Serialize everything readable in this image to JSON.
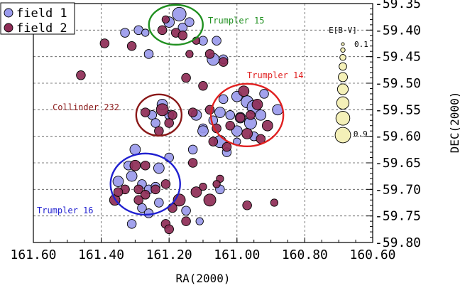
{
  "chart_data": {
    "type": "scatter",
    "xlabel": "RA(2000)",
    "ylabel": "DEC(2000)",
    "xlim": [
      161.6,
      160.6
    ],
    "ylim": [
      -59.8,
      -59.35
    ],
    "x_ticks": [
      "161.60",
      "161.40",
      "161.20",
      "161.00",
      "160.80",
      "160.60"
    ],
    "y_ticks": [
      "-59.35",
      "-59.40",
      "-59.45",
      "-59.50",
      "-59.55",
      "-59.60",
      "-59.65",
      "-59.70",
      "-59.75",
      "-59.80"
    ],
    "grid": true,
    "legend_position": "top-left",
    "size_scale": {
      "title": "E[B-V]",
      "min_label": "0.1",
      "max_label": "0.9",
      "values": [
        0.1,
        0.2,
        0.3,
        0.4,
        0.5,
        0.6,
        0.7,
        0.8,
        0.9
      ],
      "color": "#f4f0b8"
    },
    "series": [
      {
        "name": "field 1",
        "color": "#9a9aec",
        "points": [
          [
            161.17,
            -59.37,
            0.6
          ],
          [
            161.2,
            -59.385,
            0.4
          ],
          [
            161.16,
            -59.395,
            0.3
          ],
          [
            161.14,
            -59.385,
            0.3
          ],
          [
            161.33,
            -59.405,
            0.3
          ],
          [
            161.29,
            -59.4,
            0.3
          ],
          [
            161.27,
            -59.405,
            0.2
          ],
          [
            161.26,
            -59.445,
            0.3
          ],
          [
            161.07,
            -59.455,
            0.5
          ],
          [
            161.1,
            -59.42,
            0.3
          ],
          [
            161.06,
            -59.42,
            0.3
          ],
          [
            161.04,
            -59.455,
            0.3
          ],
          [
            161.04,
            -59.53,
            0.3
          ],
          [
            161.0,
            -59.525,
            0.4
          ],
          [
            160.97,
            -59.535,
            0.5
          ],
          [
            160.95,
            -59.545,
            0.6
          ],
          [
            160.93,
            -59.56,
            0.4
          ],
          [
            160.96,
            -59.575,
            0.5
          ],
          [
            160.99,
            -59.565,
            0.4
          ],
          [
            161.02,
            -59.56,
            0.3
          ],
          [
            161.05,
            -59.555,
            0.4
          ],
          [
            161.07,
            -59.57,
            0.3
          ],
          [
            161.0,
            -59.59,
            0.4
          ],
          [
            160.95,
            -59.6,
            0.3
          ],
          [
            160.88,
            -59.55,
            0.4
          ],
          [
            160.92,
            -59.52,
            0.3
          ],
          [
            161.22,
            -59.54,
            0.4
          ],
          [
            161.25,
            -59.56,
            0.3
          ],
          [
            161.24,
            -59.575,
            0.3
          ],
          [
            161.2,
            -59.56,
            0.3
          ],
          [
            161.12,
            -59.56,
            0.4
          ],
          [
            161.1,
            -59.585,
            0.3
          ],
          [
            161.05,
            -59.61,
            0.5
          ],
          [
            161.1,
            -59.59,
            0.4
          ],
          [
            161.13,
            -59.625,
            0.3
          ],
          [
            161.3,
            -59.625,
            0.4
          ],
          [
            161.32,
            -59.655,
            0.3
          ],
          [
            161.35,
            -59.685,
            0.4
          ],
          [
            161.31,
            -59.675,
            0.4
          ],
          [
            161.28,
            -59.69,
            0.3
          ],
          [
            161.26,
            -59.7,
            0.3
          ],
          [
            161.23,
            -59.66,
            0.4
          ],
          [
            161.24,
            -59.695,
            0.3
          ],
          [
            161.28,
            -59.735,
            0.3
          ],
          [
            161.31,
            -59.765,
            0.3
          ],
          [
            161.26,
            -59.745,
            0.3
          ],
          [
            161.23,
            -59.725,
            0.3
          ],
          [
            161.15,
            -59.74,
            0.3
          ],
          [
            161.11,
            -59.76,
            0.2
          ],
          [
            161.2,
            -59.64,
            0.3
          ],
          [
            161.05,
            -59.7,
            0.3
          ],
          [
            161.03,
            -59.63,
            0.3
          ],
          [
            161.0,
            -59.61,
            0.2
          ]
        ]
      },
      {
        "name": "field 2",
        "color": "#8e2c56",
        "points": [
          [
            161.21,
            -59.38,
            0.2
          ],
          [
            161.22,
            -59.4,
            0.3
          ],
          [
            161.18,
            -59.405,
            0.3
          ],
          [
            161.16,
            -59.41,
            0.3
          ],
          [
            161.12,
            -59.42,
            0.2
          ],
          [
            161.39,
            -59.425,
            0.3
          ],
          [
            161.31,
            -59.43,
            0.3
          ],
          [
            161.14,
            -59.445,
            0.2
          ],
          [
            161.08,
            -59.445,
            0.3
          ],
          [
            161.04,
            -59.46,
            0.3
          ],
          [
            161.46,
            -59.485,
            0.3
          ],
          [
            161.15,
            -59.49,
            0.3
          ],
          [
            161.1,
            -59.505,
            0.3
          ],
          [
            161.22,
            -59.55,
            0.5
          ],
          [
            161.19,
            -59.56,
            0.3
          ],
          [
            161.2,
            -59.575,
            0.3
          ],
          [
            161.23,
            -59.59,
            0.3
          ],
          [
            161.27,
            -59.555,
            0.3
          ],
          [
            161.13,
            -59.555,
            0.3
          ],
          [
            161.08,
            -59.55,
            0.3
          ],
          [
            160.98,
            -59.515,
            0.4
          ],
          [
            160.94,
            -59.54,
            0.4
          ],
          [
            160.96,
            -59.56,
            0.3
          ],
          [
            160.97,
            -59.595,
            0.4
          ],
          [
            160.91,
            -59.58,
            0.4
          ],
          [
            160.93,
            -59.605,
            0.3
          ],
          [
            160.99,
            -59.565,
            0.3
          ],
          [
            161.02,
            -59.58,
            0.3
          ],
          [
            161.03,
            -59.62,
            0.3
          ],
          [
            161.07,
            -59.61,
            0.3
          ],
          [
            161.06,
            -59.585,
            0.3
          ],
          [
            161.3,
            -59.655,
            0.4
          ],
          [
            161.27,
            -59.655,
            0.3
          ],
          [
            161.29,
            -59.7,
            0.3
          ],
          [
            161.27,
            -59.71,
            0.3
          ],
          [
            161.24,
            -59.7,
            0.3
          ],
          [
            161.21,
            -59.69,
            0.3
          ],
          [
            161.33,
            -59.7,
            0.3
          ],
          [
            161.36,
            -59.72,
            0.4
          ],
          [
            161.35,
            -59.705,
            0.3
          ],
          [
            161.29,
            -59.72,
            0.3
          ],
          [
            161.17,
            -59.72,
            0.5
          ],
          [
            161.19,
            -59.735,
            0.3
          ],
          [
            161.21,
            -59.765,
            0.3
          ],
          [
            161.2,
            -59.775,
            0.3
          ],
          [
            161.12,
            -59.705,
            0.4
          ],
          [
            161.08,
            -59.72,
            0.5
          ],
          [
            161.1,
            -59.695,
            0.2
          ],
          [
            161.05,
            -59.68,
            0.2
          ],
          [
            160.97,
            -59.73,
            0.3
          ],
          [
            160.89,
            -59.725,
            0.2
          ],
          [
            161.15,
            -59.76,
            0.3
          ],
          [
            161.06,
            -59.69,
            0.2
          ],
          [
            161.13,
            -59.65,
            0.3
          ]
        ]
      }
    ],
    "clusters": [
      {
        "name": "Trumpler 15",
        "ra": 161.18,
        "dec": -59.39,
        "color": "#209020"
      },
      {
        "name": "Trumpler 14",
        "ra": 160.97,
        "dec": -59.56,
        "color": "#e02020"
      },
      {
        "name": "Collinder 232",
        "ra": 161.23,
        "dec": -59.56,
        "color": "#8a1818"
      },
      {
        "name": "Trumpler 16",
        "ra": 161.27,
        "dec": -59.69,
        "color": "#2020d0"
      }
    ]
  }
}
